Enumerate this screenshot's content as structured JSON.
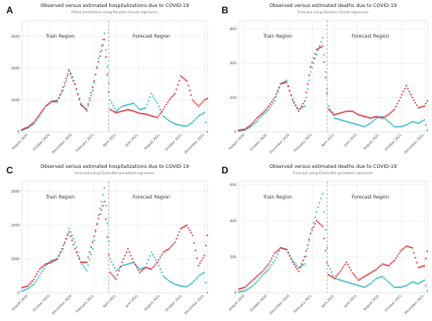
{
  "figure": {
    "colors": {
      "observed": "#35b8c6",
      "estimated": "#e0262c",
      "divider": "#999999",
      "grid": "#e6e6e6"
    }
  },
  "chart_data": [
    {
      "panel": "A",
      "type": "scatter",
      "title": "Observed versus estimated hospitalizations due to COVID-19",
      "subtitle": "Fitted predictions using Random Forest regression",
      "region_labels": [
        "Train Region",
        "Forecast Region"
      ],
      "forecast_start": "2021-02-15",
      "x_ticks": [
        "August 2020",
        "October 2020",
        "December 2020",
        "February 2021",
        "April 2021",
        "June 2021",
        "August 2021",
        "October 2021",
        "December 2021"
      ],
      "y_ticks": [
        0,
        1000,
        2000,
        3000
      ],
      "ylim": [
        0,
        3500
      ],
      "series_observed": [
        [
          0,
          50
        ],
        [
          2,
          120
        ],
        [
          4,
          250
        ],
        [
          6,
          500
        ],
        [
          8,
          800
        ],
        [
          10,
          950
        ],
        [
          12,
          1000
        ],
        [
          14,
          1300
        ],
        [
          16,
          1900
        ],
        [
          18,
          1500
        ],
        [
          20,
          900
        ],
        [
          22,
          650
        ],
        [
          24,
          1300
        ],
        [
          26,
          2300
        ],
        [
          28,
          3100
        ],
        [
          30,
          1000
        ],
        [
          32,
          650
        ],
        [
          34,
          800
        ],
        [
          36,
          850
        ],
        [
          38,
          900
        ],
        [
          40,
          700
        ],
        [
          42,
          750
        ],
        [
          44,
          1200
        ],
        [
          46,
          900
        ],
        [
          48,
          500
        ],
        [
          50,
          350
        ],
        [
          52,
          250
        ],
        [
          54,
          200
        ],
        [
          56,
          180
        ],
        [
          58,
          300
        ],
        [
          60,
          500
        ],
        [
          62,
          600
        ],
        [
          63,
          0
        ]
      ],
      "series_estimated": [
        [
          0,
          70
        ],
        [
          2,
          150
        ],
        [
          4,
          300
        ],
        [
          6,
          550
        ],
        [
          8,
          800
        ],
        [
          10,
          950
        ],
        [
          12,
          950
        ],
        [
          14,
          1400
        ],
        [
          16,
          1950
        ],
        [
          18,
          1500
        ],
        [
          20,
          850
        ],
        [
          22,
          700
        ],
        [
          24,
          1400
        ],
        [
          26,
          2200
        ],
        [
          28,
          2900
        ],
        [
          30,
          700
        ],
        [
          32,
          600
        ],
        [
          34,
          650
        ],
        [
          36,
          700
        ],
        [
          38,
          650
        ],
        [
          40,
          580
        ],
        [
          42,
          560
        ],
        [
          44,
          500
        ],
        [
          46,
          450
        ],
        [
          48,
          700
        ],
        [
          50,
          1000
        ],
        [
          52,
          1200
        ],
        [
          54,
          1750
        ],
        [
          56,
          1600
        ],
        [
          58,
          1000
        ],
        [
          60,
          800
        ],
        [
          62,
          1000
        ],
        [
          63,
          1050
        ]
      ]
    },
    {
      "panel": "B",
      "type": "scatter",
      "title": "Observed versus estimated deaths due to COVID-19",
      "subtitle": "Forecast using Random Forest regression",
      "region_labels": [
        "Train Region",
        "Forecast Region"
      ],
      "forecast_start": "2021-02-15",
      "x_ticks": [
        "August 2020",
        "October 2020",
        "December 2020",
        "February 2021",
        "April 2021",
        "June 2021",
        "August 2021",
        "October 2021",
        "December 2021"
      ],
      "y_ticks": [
        0,
        200,
        400,
        600
      ],
      "ylim": [
        0,
        650
      ],
      "series_observed": [
        [
          0,
          5
        ],
        [
          2,
          10
        ],
        [
          4,
          30
        ],
        [
          6,
          60
        ],
        [
          8,
          100
        ],
        [
          10,
          130
        ],
        [
          12,
          180
        ],
        [
          14,
          280
        ],
        [
          16,
          300
        ],
        [
          18,
          180
        ],
        [
          20,
          130
        ],
        [
          22,
          150
        ],
        [
          24,
          350
        ],
        [
          26,
          450
        ],
        [
          28,
          550
        ],
        [
          30,
          150
        ],
        [
          32,
          80
        ],
        [
          34,
          70
        ],
        [
          36,
          60
        ],
        [
          38,
          50
        ],
        [
          40,
          40
        ],
        [
          42,
          30
        ],
        [
          44,
          50
        ],
        [
          46,
          80
        ],
        [
          48,
          90
        ],
        [
          50,
          60
        ],
        [
          52,
          30
        ],
        [
          54,
          30
        ],
        [
          56,
          40
        ],
        [
          58,
          60
        ],
        [
          60,
          50
        ],
        [
          62,
          70
        ],
        [
          63,
          10
        ]
      ],
      "series_estimated": [
        [
          0,
          10
        ],
        [
          2,
          15
        ],
        [
          4,
          40
        ],
        [
          6,
          80
        ],
        [
          8,
          110
        ],
        [
          10,
          150
        ],
        [
          12,
          200
        ],
        [
          14,
          280
        ],
        [
          16,
          290
        ],
        [
          18,
          190
        ],
        [
          20,
          120
        ],
        [
          22,
          180
        ],
        [
          24,
          380
        ],
        [
          26,
          480
        ],
        [
          28,
          500
        ],
        [
          30,
          130
        ],
        [
          32,
          100
        ],
        [
          34,
          110
        ],
        [
          36,
          120
        ],
        [
          38,
          120
        ],
        [
          40,
          100
        ],
        [
          42,
          90
        ],
        [
          44,
          80
        ],
        [
          46,
          90
        ],
        [
          48,
          80
        ],
        [
          50,
          100
        ],
        [
          52,
          130
        ],
        [
          54,
          200
        ],
        [
          56,
          270
        ],
        [
          58,
          200
        ],
        [
          60,
          140
        ],
        [
          62,
          150
        ],
        [
          63,
          180
        ]
      ]
    },
    {
      "panel": "C",
      "type": "scatter",
      "title": "Observed versus estimated hospitalizations due to COVID-19",
      "subtitle": "Forecast using ElasticNet penalized regression",
      "region_labels": [
        "Train Region",
        "Forecast Region"
      ],
      "forecast_start": "2021-02-15",
      "x_ticks": [
        "August 2020",
        "October 2020",
        "December 2020",
        "February 2021",
        "April 2021",
        "June 2021",
        "August 2021",
        "October 2021",
        "December 2021"
      ],
      "y_ticks": [
        0,
        1000,
        2000,
        3000
      ],
      "ylim": [
        0,
        3300
      ],
      "series_observed": [
        [
          0,
          50
        ],
        [
          2,
          120
        ],
        [
          4,
          250
        ],
        [
          6,
          500
        ],
        [
          8,
          800
        ],
        [
          10,
          950
        ],
        [
          12,
          1000
        ],
        [
          14,
          1300
        ],
        [
          16,
          1900
        ],
        [
          18,
          1500
        ],
        [
          20,
          900
        ],
        [
          22,
          650
        ],
        [
          24,
          1300
        ],
        [
          26,
          2300
        ],
        [
          28,
          3100
        ],
        [
          30,
          1000
        ],
        [
          32,
          650
        ],
        [
          34,
          800
        ],
        [
          36,
          850
        ],
        [
          38,
          900
        ],
        [
          40,
          700
        ],
        [
          42,
          750
        ],
        [
          44,
          1200
        ],
        [
          46,
          900
        ],
        [
          48,
          500
        ],
        [
          50,
          350
        ],
        [
          52,
          250
        ],
        [
          54,
          200
        ],
        [
          56,
          180
        ],
        [
          58,
          300
        ],
        [
          60,
          500
        ],
        [
          62,
          600
        ],
        [
          63,
          0
        ]
      ],
      "series_estimated": [
        [
          0,
          150
        ],
        [
          2,
          200
        ],
        [
          4,
          400
        ],
        [
          6,
          700
        ],
        [
          8,
          850
        ],
        [
          10,
          900
        ],
        [
          12,
          1000
        ],
        [
          14,
          1400
        ],
        [
          16,
          1800
        ],
        [
          18,
          1300
        ],
        [
          20,
          900
        ],
        [
          22,
          900
        ],
        [
          24,
          1500
        ],
        [
          26,
          2200
        ],
        [
          28,
          2700
        ],
        [
          30,
          600
        ],
        [
          32,
          400
        ],
        [
          34,
          900
        ],
        [
          36,
          1300
        ],
        [
          38,
          900
        ],
        [
          40,
          600
        ],
        [
          42,
          750
        ],
        [
          44,
          700
        ],
        [
          46,
          900
        ],
        [
          48,
          1200
        ],
        [
          50,
          1300
        ],
        [
          52,
          1500
        ],
        [
          54,
          1900
        ],
        [
          56,
          2000
        ],
        [
          58,
          1700
        ],
        [
          60,
          800
        ],
        [
          62,
          1100
        ],
        [
          63,
          1700
        ]
      ]
    },
    {
      "panel": "D",
      "type": "scatter",
      "title": "Observed versus estimated deaths due to COVID-19",
      "subtitle": "Forecast using ElasticNet penalized regression",
      "region_labels": [
        "Train Region",
        "Forecast Region"
      ],
      "forecast_start": "2021-02-15",
      "x_ticks": [
        "August 2020",
        "October 2020",
        "December 2020",
        "February 2021",
        "April 2021",
        "June 2021",
        "August 2021",
        "October 2021",
        "December 2021"
      ],
      "y_ticks": [
        0,
        200,
        400,
        600
      ],
      "ylim": [
        0,
        620
      ],
      "series_observed": [
        [
          0,
          5
        ],
        [
          2,
          10
        ],
        [
          4,
          30
        ],
        [
          6,
          60
        ],
        [
          8,
          100
        ],
        [
          10,
          130
        ],
        [
          12,
          180
        ],
        [
          14,
          250
        ],
        [
          16,
          240
        ],
        [
          18,
          180
        ],
        [
          20,
          140
        ],
        [
          22,
          160
        ],
        [
          24,
          330
        ],
        [
          26,
          450
        ],
        [
          28,
          550
        ],
        [
          30,
          150
        ],
        [
          32,
          80
        ],
        [
          34,
          70
        ],
        [
          36,
          60
        ],
        [
          38,
          50
        ],
        [
          40,
          40
        ],
        [
          42,
          30
        ],
        [
          44,
          50
        ],
        [
          46,
          80
        ],
        [
          48,
          90
        ],
        [
          50,
          60
        ],
        [
          52,
          30
        ],
        [
          54,
          30
        ],
        [
          56,
          40
        ],
        [
          58,
          60
        ],
        [
          60,
          50
        ],
        [
          62,
          70
        ],
        [
          63,
          10
        ]
      ],
      "series_estimated": [
        [
          0,
          20
        ],
        [
          2,
          30
        ],
        [
          4,
          60
        ],
        [
          6,
          90
        ],
        [
          8,
          120
        ],
        [
          10,
          160
        ],
        [
          12,
          220
        ],
        [
          14,
          250
        ],
        [
          16,
          240
        ],
        [
          18,
          170
        ],
        [
          20,
          120
        ],
        [
          22,
          200
        ],
        [
          24,
          330
        ],
        [
          26,
          400
        ],
        [
          28,
          370
        ],
        [
          30,
          100
        ],
        [
          32,
          80
        ],
        [
          34,
          120
        ],
        [
          36,
          170
        ],
        [
          38,
          110
        ],
        [
          40,
          70
        ],
        [
          42,
          90
        ],
        [
          44,
          110
        ],
        [
          46,
          130
        ],
        [
          48,
          160
        ],
        [
          50,
          150
        ],
        [
          52,
          180
        ],
        [
          54,
          230
        ],
        [
          56,
          260
        ],
        [
          58,
          250
        ],
        [
          60,
          140
        ],
        [
          62,
          150
        ],
        [
          63,
          230
        ]
      ]
    }
  ]
}
